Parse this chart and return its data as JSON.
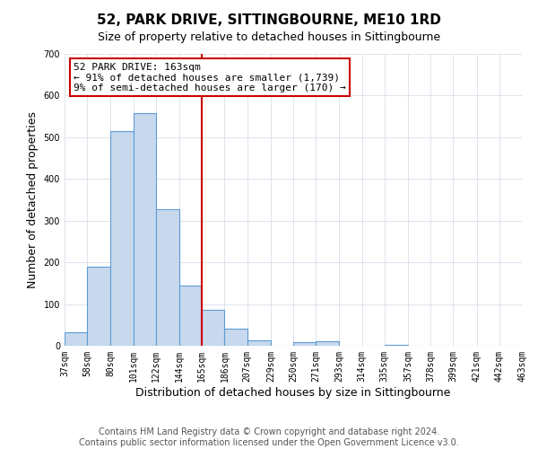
{
  "title": "52, PARK DRIVE, SITTINGBOURNE, ME10 1RD",
  "subtitle": "Size of property relative to detached houses in Sittingbourne",
  "xlabel": "Distribution of detached houses by size in Sittingbourne",
  "ylabel": "Number of detached properties",
  "footnote1": "Contains HM Land Registry data © Crown copyright and database right 2024.",
  "footnote2": "Contains public sector information licensed under the Open Government Licence v3.0.",
  "bar_edges": [
    37,
    58,
    80,
    101,
    122,
    144,
    165,
    186,
    207,
    229,
    250,
    271,
    293,
    314,
    335,
    357,
    378,
    399,
    421,
    442,
    463
  ],
  "bar_heights": [
    32,
    190,
    515,
    558,
    328,
    145,
    87,
    40,
    14,
    0,
    9,
    11,
    0,
    0,
    3,
    0,
    0,
    0,
    0,
    0
  ],
  "bar_color": "#c8d9ed",
  "bar_edgecolor": "#5b9bd5",
  "vline_x": 165,
  "vline_color": "#cc0000",
  "ylim": [
    0,
    700
  ],
  "yticks": [
    0,
    100,
    200,
    300,
    400,
    500,
    600,
    700
  ],
  "annotation_title": "52 PARK DRIVE: 163sqm",
  "annotation_line1": "← 91% of detached houses are smaller (1,739)",
  "annotation_line2": "9% of semi-detached houses are larger (170) →",
  "annotation_box_color": "#cc0000",
  "title_fontsize": 11,
  "subtitle_fontsize": 9,
  "axis_label_fontsize": 9,
  "tick_fontsize": 7,
  "annotation_fontsize": 8,
  "footnote_fontsize": 7
}
